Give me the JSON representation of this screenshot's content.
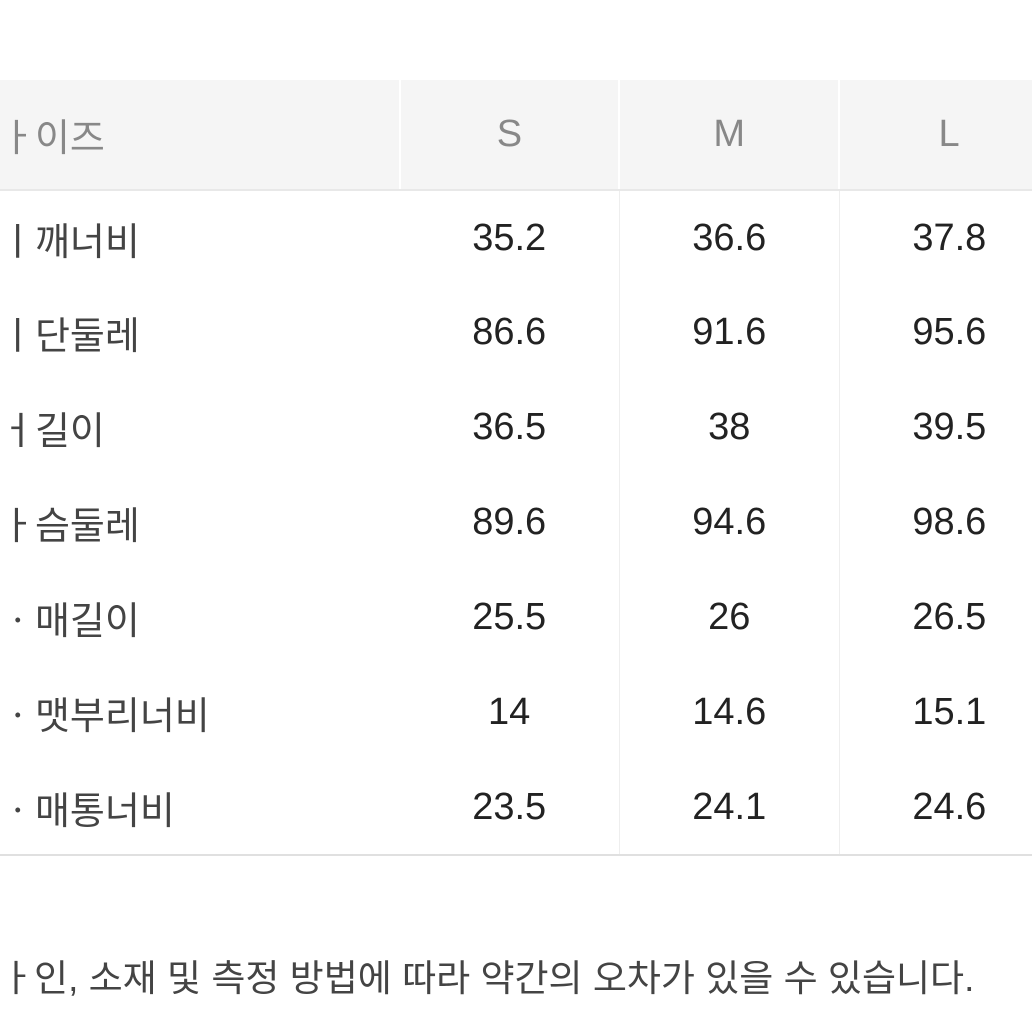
{
  "table": {
    "header_label": "ㅏ이즈",
    "columns": [
      "S",
      "M",
      "L"
    ],
    "rows": [
      {
        "label": "ㅣ깨너비",
        "values": [
          "35.2",
          "36.6",
          "37.8"
        ]
      },
      {
        "label": "ㅣ단둘레",
        "values": [
          "86.6",
          "91.6",
          "95.6"
        ]
      },
      {
        "label": "ㅓ길이",
        "values": [
          "36.5",
          "38",
          "39.5"
        ]
      },
      {
        "label": "ㅏ슴둘레",
        "values": [
          "89.6",
          "94.6",
          "98.6"
        ]
      },
      {
        "label": "ㆍ매길이",
        "values": [
          "25.5",
          "26",
          "26.5"
        ]
      },
      {
        "label": "ㆍ맷부리너비",
        "values": [
          "14",
          "14.6",
          "15.1"
        ]
      },
      {
        "label": "ㆍ매통너비",
        "values": [
          "23.5",
          "24.1",
          "24.6"
        ]
      }
    ]
  },
  "footer": "ㅏ인, 소재 및 측정 방법에 따라 약간의 오차가 있을 수 있습니다.",
  "style": {
    "header_bg": "#f5f5f5",
    "header_color": "#888888",
    "cell_color": "#222222",
    "label_color": "#444444",
    "border_color": "#e8e8e8",
    "cell_divider": "#eeeeee",
    "font_size": 38,
    "footer_font_size": 37,
    "footer_color": "#444444"
  }
}
